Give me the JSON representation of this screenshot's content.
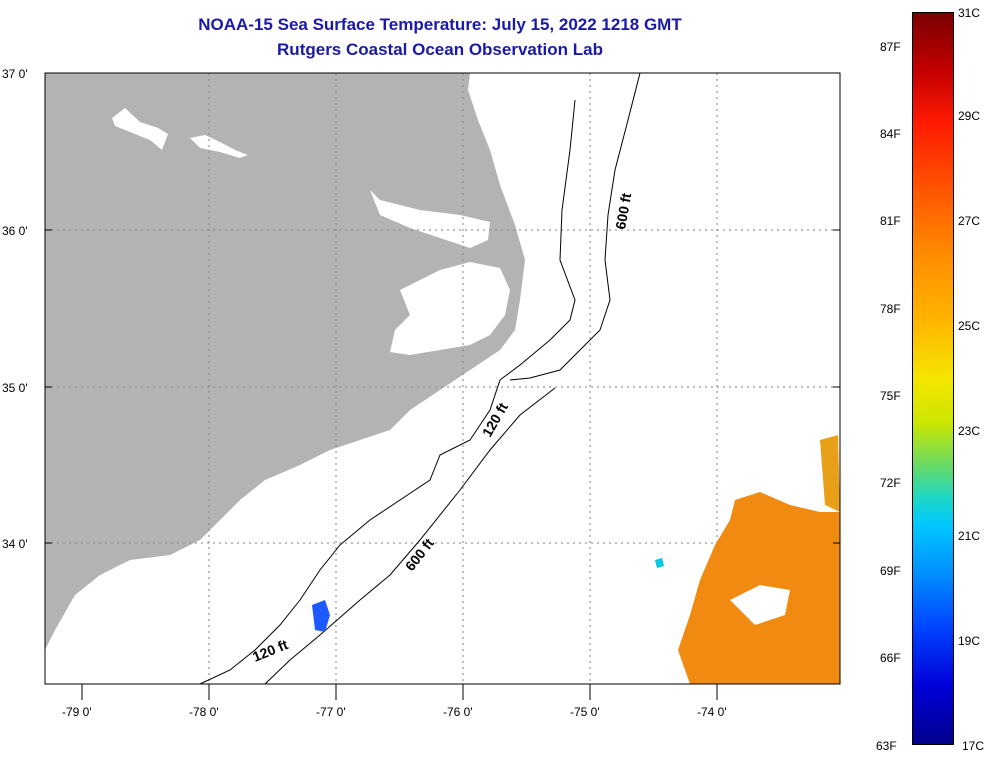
{
  "title": {
    "line1": "NOAA-15 Sea Surface Temperature:  July 15, 2022 1218 GMT",
    "line2": "Rutgers Coastal Ocean Observation Lab"
  },
  "axes": {
    "lat_labels": [
      "37 0'",
      "36 0'",
      "35 0'",
      "34 0'"
    ],
    "lon_labels": [
      "-79 0'",
      "-78 0'",
      "-77 0'",
      "-76 0'",
      "-75 0'",
      "-74 0'"
    ]
  },
  "contours": {
    "label_600_north": "600 ft",
    "label_120_mid": "120 ft",
    "label_600_south": "600 ft",
    "label_120_south": "120 ft"
  },
  "colorbar": {
    "fahrenheit": [
      "87F",
      "84F",
      "81F",
      "78F",
      "75F",
      "72F",
      "69F",
      "66F",
      "63F"
    ],
    "celsius": [
      "31C",
      "29C",
      "27C",
      "25C",
      "23C",
      "21C",
      "19C",
      "17C"
    ]
  },
  "colors": {
    "land": "#b3b3b3",
    "title": "#1a1aa6",
    "sst_warm": "#f08a10",
    "sst_cool": "#1e5aff"
  }
}
